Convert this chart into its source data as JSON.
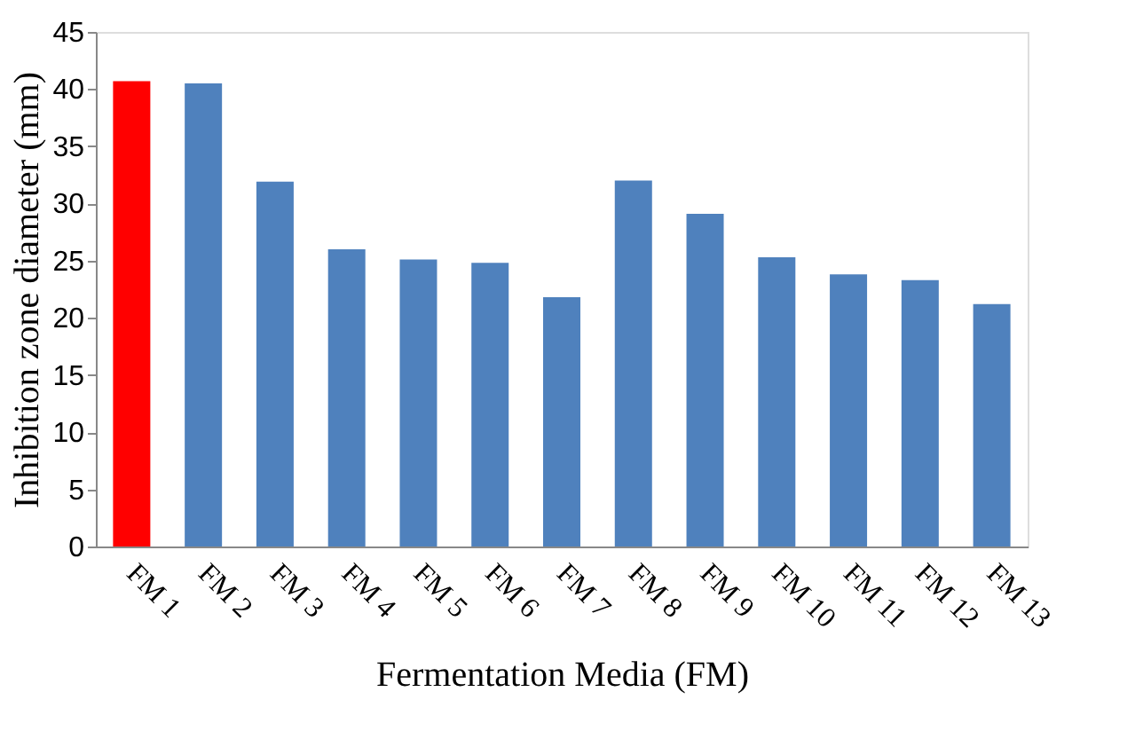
{
  "chart_data": {
    "type": "bar",
    "xlabel": "Fermentation Media (FM)",
    "ylabel": "Inhibition zone diameter (mm)",
    "categories": [
      "FM 1",
      "FM 2",
      "FM 3",
      "FM 4",
      "FM 5",
      "FM 6",
      "FM 7",
      "FM 8",
      "FM 9",
      "FM 10",
      "FM 11",
      "FM 12",
      "FM 13"
    ],
    "values": [
      40.7,
      40.5,
      31.9,
      26.0,
      25.1,
      24.8,
      21.8,
      32.0,
      29.1,
      25.3,
      23.8,
      23.3,
      21.2
    ],
    "colors": [
      "#ff0000",
      "#4f81bd",
      "#4f81bd",
      "#4f81bd",
      "#4f81bd",
      "#4f81bd",
      "#4f81bd",
      "#4f81bd",
      "#4f81bd",
      "#4f81bd",
      "#4f81bd",
      "#4f81bd",
      "#4f81bd"
    ],
    "ylim": [
      0,
      45
    ],
    "yticks": [
      0,
      5,
      10,
      15,
      20,
      25,
      30,
      35,
      40,
      45
    ],
    "grid": false
  }
}
